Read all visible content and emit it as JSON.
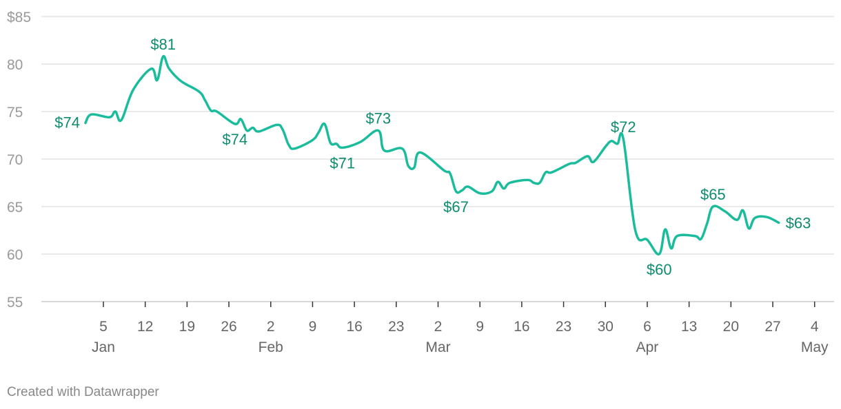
{
  "chart_data": {
    "type": "line",
    "title": "",
    "xlabel": "",
    "ylabel": "",
    "ylim": [
      55,
      85
    ],
    "y_ticks": [
      55,
      60,
      65,
      70,
      75,
      80,
      85
    ],
    "y_tick_labels": [
      "55",
      "60",
      "65",
      "70",
      "75",
      "80",
      "$85"
    ],
    "grid": true,
    "x_ticks": [
      {
        "date": "Jan 5",
        "label": "5",
        "month": "Jan"
      },
      {
        "date": "Jan 12",
        "label": "12",
        "month": ""
      },
      {
        "date": "Jan 19",
        "label": "19",
        "month": ""
      },
      {
        "date": "Jan 26",
        "label": "26",
        "month": ""
      },
      {
        "date": "Feb 2",
        "label": "2",
        "month": "Feb"
      },
      {
        "date": "Feb 9",
        "label": "9",
        "month": ""
      },
      {
        "date": "Feb 16",
        "label": "16",
        "month": ""
      },
      {
        "date": "Feb 23",
        "label": "23",
        "month": ""
      },
      {
        "date": "Mar 2",
        "label": "2",
        "month": "Mar"
      },
      {
        "date": "Mar 9",
        "label": "9",
        "month": ""
      },
      {
        "date": "Mar 16",
        "label": "16",
        "month": ""
      },
      {
        "date": "Mar 23",
        "label": "23",
        "month": ""
      },
      {
        "date": "Mar 30",
        "label": "30",
        "month": ""
      },
      {
        "date": "Apr 6",
        "label": "6",
        "month": "Apr"
      },
      {
        "date": "Apr 13",
        "label": "13",
        "month": ""
      },
      {
        "date": "Apr 20",
        "label": "20",
        "month": ""
      },
      {
        "date": "Apr 27",
        "label": "27",
        "month": ""
      },
      {
        "date": "May 4",
        "label": "4",
        "month": "May"
      }
    ],
    "series": [
      {
        "color": "#1abc9c",
        "points": [
          [
            "Jan 2",
            73.8
          ],
          [
            "Jan 3",
            74.7
          ],
          [
            "Jan 6",
            74.4
          ],
          [
            "Jan 7",
            75.0
          ],
          [
            "Jan 8",
            74.1
          ],
          [
            "Jan 10",
            77.3
          ],
          [
            "Jan 13",
            79.5
          ],
          [
            "Jan 14",
            78.3
          ],
          [
            "Jan 15",
            80.8
          ],
          [
            "Jan 16",
            79.5
          ],
          [
            "Jan 18",
            78.2
          ],
          [
            "Jan 21",
            77.1
          ],
          [
            "Jan 22",
            76.2
          ],
          [
            "Jan 23",
            75.1
          ],
          [
            "Jan 24",
            75.0
          ],
          [
            "Jan 27",
            73.7
          ],
          [
            "Jan 28",
            74.2
          ],
          [
            "Jan 29",
            73.0
          ],
          [
            "Jan 30",
            73.3
          ],
          [
            "Jan 31",
            72.9
          ],
          [
            "Feb 3",
            73.6
          ],
          [
            "Feb 4",
            73.1
          ],
          [
            "Feb 5",
            71.5
          ],
          [
            "Feb 6",
            71.1
          ],
          [
            "Feb 9",
            72.0
          ],
          [
            "Feb 10",
            72.8
          ],
          [
            "Feb 11",
            73.7
          ],
          [
            "Feb 12",
            71.7
          ],
          [
            "Feb 13",
            71.6
          ],
          [
            "Feb 14",
            71.2
          ],
          [
            "Feb 17",
            71.8
          ],
          [
            "Feb 20",
            73.0
          ],
          [
            "Feb 21",
            70.9
          ],
          [
            "Feb 24",
            71.1
          ],
          [
            "Feb 25",
            69.3
          ],
          [
            "Feb 26",
            69.1
          ],
          [
            "Feb 27",
            70.7
          ],
          [
            "Mar 3",
            68.8
          ],
          [
            "Mar 4",
            68.5
          ],
          [
            "Mar 5",
            66.6
          ],
          [
            "Mar 6",
            66.7
          ],
          [
            "Mar 7",
            67.1
          ],
          [
            "Mar 9",
            66.4
          ],
          [
            "Mar 11",
            66.6
          ],
          [
            "Mar 12",
            67.6
          ],
          [
            "Mar 13",
            66.9
          ],
          [
            "Mar 14",
            67.5
          ],
          [
            "Mar 17",
            67.8
          ],
          [
            "Mar 18",
            67.5
          ],
          [
            "Mar 19",
            67.5
          ],
          [
            "Mar 20",
            68.6
          ],
          [
            "Mar 21",
            68.6
          ],
          [
            "Mar 24",
            69.5
          ],
          [
            "Mar 25",
            69.6
          ],
          [
            "Mar 27",
            70.3
          ],
          [
            "Mar 28",
            69.7
          ],
          [
            "Mar 30",
            71.3
          ],
          [
            "Mar 31",
            71.9
          ],
          [
            "Apr 1",
            71.6
          ],
          [
            "Apr 2",
            72.1
          ],
          [
            "Apr 4",
            62.5
          ],
          [
            "Apr 6",
            61.5
          ],
          [
            "Apr 8",
            60.0
          ],
          [
            "Apr 9",
            62.6
          ],
          [
            "Apr 10",
            60.6
          ],
          [
            "Apr 11",
            61.9
          ],
          [
            "Apr 14",
            61.9
          ],
          [
            "Apr 15",
            61.6
          ],
          [
            "Apr 16",
            63.2
          ],
          [
            "Apr 17",
            65.0
          ],
          [
            "Apr 19",
            64.5
          ],
          [
            "Apr 21",
            63.6
          ],
          [
            "Apr 22",
            64.6
          ],
          [
            "Apr 23",
            62.7
          ],
          [
            "Apr 24",
            63.8
          ],
          [
            "Apr 26",
            63.9
          ],
          [
            "Apr 28",
            63.3
          ]
        ]
      }
    ],
    "annotations": [
      {
        "date": "Jan 2",
        "value": 73.8,
        "text": "$74",
        "position": "left"
      },
      {
        "date": "Jan 15",
        "value": 80.8,
        "text": "$81",
        "position": "above"
      },
      {
        "date": "Jan 27",
        "value": 73.7,
        "text": "$74",
        "position": "below"
      },
      {
        "date": "Feb 14",
        "value": 71.2,
        "text": "$71",
        "position": "below"
      },
      {
        "date": "Feb 20",
        "value": 73.0,
        "text": "$73",
        "position": "above"
      },
      {
        "date": "Mar 5",
        "value": 66.6,
        "text": "$67",
        "position": "below"
      },
      {
        "date": "Apr 2",
        "value": 72.1,
        "text": "$72",
        "position": "above"
      },
      {
        "date": "Apr 8",
        "value": 60.0,
        "text": "$60",
        "position": "below"
      },
      {
        "date": "Apr 17",
        "value": 65.0,
        "text": "$65",
        "position": "above"
      },
      {
        "date": "Apr 28",
        "value": 63.3,
        "text": "$63",
        "position": "right"
      }
    ],
    "annotation_color": "#0e8c6f"
  },
  "footer": {
    "credit": "Created with Datawrapper"
  }
}
